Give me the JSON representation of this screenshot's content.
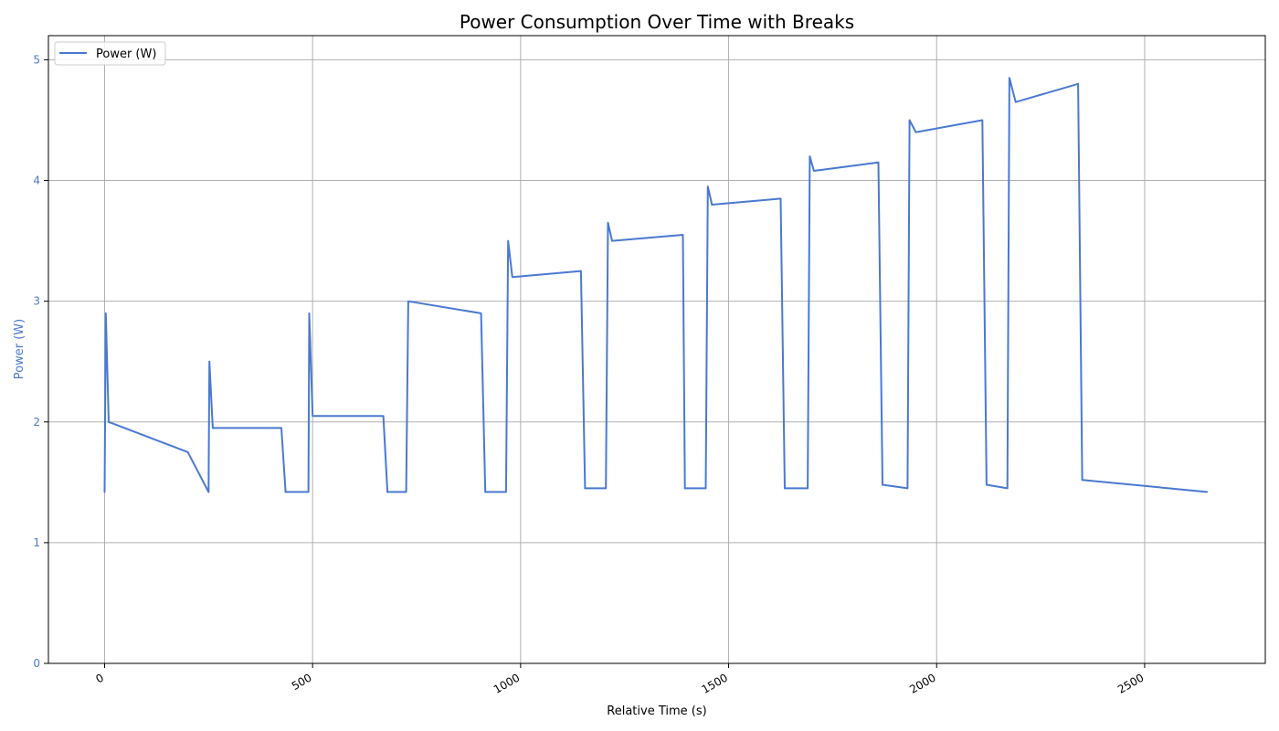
{
  "chart_data": {
    "type": "line",
    "title": "Power Consumption Over Time with Breaks",
    "xlabel": "Relative Time (s)",
    "ylabel": "Power (W)",
    "xlim": [
      -135,
      2790
    ],
    "ylim": [
      0,
      5.2
    ],
    "xticks": [
      0,
      500,
      1000,
      1500,
      2000,
      2500
    ],
    "yticks": [
      0,
      1,
      2,
      3,
      4,
      5
    ],
    "grid": true,
    "legend_position": "upper-left",
    "colors": {
      "line": "#4a79d0",
      "ylabel": "#4a79d0",
      "grid": "#b0b0b0"
    },
    "series": [
      {
        "name": "Power (W)",
        "segments": [
          [
            0,
            1.42,
            3,
            2.9,
            10,
            2.0,
            200,
            1.75,
            250,
            1.42
          ],
          [
            250,
            1.42,
            252,
            2.5,
            260,
            1.95,
            425,
            1.95,
            435,
            1.42
          ],
          [
            435,
            1.42,
            490,
            1.42,
            492,
            2.9,
            500,
            2.05,
            670,
            2.05,
            680,
            1.42
          ],
          [
            680,
            1.42,
            725,
            1.42,
            730,
            3.0,
            905,
            2.9,
            915,
            1.42
          ],
          [
            915,
            1.42,
            965,
            1.42,
            970,
            3.5,
            980,
            3.2,
            1145,
            3.25,
            1155,
            1.45
          ],
          [
            1155,
            1.45,
            1205,
            1.45,
            1210,
            3.65,
            1220,
            3.5,
            1390,
            3.55,
            1395,
            1.45
          ],
          [
            1395,
            1.45,
            1445,
            1.45,
            1450,
            3.95,
            1460,
            3.8,
            1625,
            3.85,
            1635,
            1.45
          ],
          [
            1635,
            1.45,
            1690,
            1.45,
            1695,
            4.2,
            1705,
            4.08,
            1860,
            4.15,
            1870,
            1.48
          ],
          [
            1870,
            1.48,
            1930,
            1.45,
            1935,
            4.5,
            1950,
            4.4,
            2110,
            4.5,
            2120,
            1.48
          ],
          [
            2120,
            1.48,
            2170,
            1.45,
            2175,
            4.85,
            2190,
            4.65,
            2340,
            4.8,
            2350,
            1.52,
            2650,
            1.42
          ]
        ]
      }
    ]
  }
}
